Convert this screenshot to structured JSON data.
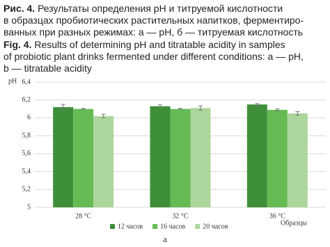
{
  "caption_ru": {
    "label": "Рис. 4.",
    "lines": [
      "Результаты определения pH и титруемой кислотности",
      "в образцах пробиотических растительных напитков, ферментиро-",
      "ванных при разных режимах: а — pH, б — титруемая кислотность"
    ]
  },
  "caption_en": {
    "label": "Fig. 4.",
    "lines": [
      "Results of determining pH and titratable acidity in samples",
      "of probiotic plant drinks fermented under different conditions: a — pH,",
      "b — titratable acidity"
    ]
  },
  "chart_data": {
    "type": "bar",
    "y_label": "pH",
    "x_label": "Образцы",
    "panel_label": "а",
    "categories": [
      "28 °C",
      "32 °C",
      "36 °C"
    ],
    "series": [
      {
        "name": "12 часов",
        "color": "#3f8f3a",
        "values": [
          6.12,
          6.13,
          6.15
        ],
        "errors": [
          0.03,
          0.015,
          0.01
        ]
      },
      {
        "name": "16 часов",
        "color": "#66bb55",
        "values": [
          6.1,
          6.1,
          6.09
        ],
        "errors": [
          0.005,
          0.005,
          0.01
        ]
      },
      {
        "name": "20 часов",
        "color": "#acd69c",
        "values": [
          6.02,
          6.11,
          6.05
        ],
        "errors": [
          0.02,
          0.025,
          0.02
        ]
      }
    ],
    "ylim": [
      5,
      6.4
    ],
    "yticks": [
      5,
      {
        "value": 5.2,
        "label": "5,2"
      },
      {
        "value": 5.4,
        "label": "5,4"
      },
      {
        "value": 5.6,
        "label": "5,6"
      },
      {
        "value": 5.8,
        "label": "5,8"
      },
      6,
      {
        "value": 6.2,
        "label": "6,2"
      },
      {
        "value": 6.4,
        "label": "6,4"
      }
    ],
    "grid": true
  }
}
